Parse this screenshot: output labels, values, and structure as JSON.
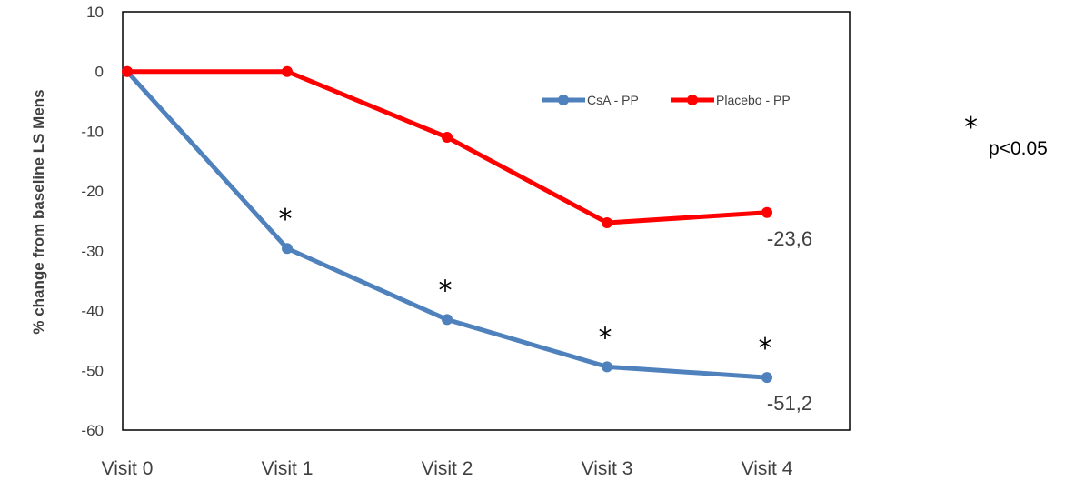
{
  "chart_data": {
    "type": "line",
    "categories": [
      "Visit 0",
      "Visit 1",
      "Visit 2",
      "Visit 3",
      "Visit 4"
    ],
    "series": [
      {
        "name": "CsA - PP",
        "color": "#4f81bd",
        "values": [
          0,
          -29.6,
          -41.5,
          -49.4,
          -51.2
        ]
      },
      {
        "name": "Placebo - PP",
        "color": "#ff0000",
        "values": [
          0,
          0,
          -11,
          -25.3,
          -23.6
        ]
      }
    ],
    "ylabel": "% change from baseline LS Mens",
    "xlabel": "",
    "ylim": [
      -60,
      10
    ],
    "yticks": [
      "10",
      "0",
      "-10",
      "-20",
      "-30",
      "-40",
      "-50",
      "-60"
    ],
    "grid": false,
    "legend_position": "top-right",
    "data_labels": [
      {
        "series": "Placebo - PP",
        "category": "Visit 4",
        "text": "-23,6"
      },
      {
        "series": "CsA - PP",
        "category": "Visit 4",
        "text": "-51,2"
      }
    ],
    "significance_markers": [
      {
        "category": "Visit 1",
        "symbol": "*"
      },
      {
        "category": "Visit 2",
        "symbol": "*"
      },
      {
        "category": "Visit 3",
        "symbol": "*"
      },
      {
        "category": "Visit 4",
        "symbol": "*"
      }
    ],
    "note": {
      "symbol": "*",
      "text": "p<0.05"
    }
  }
}
